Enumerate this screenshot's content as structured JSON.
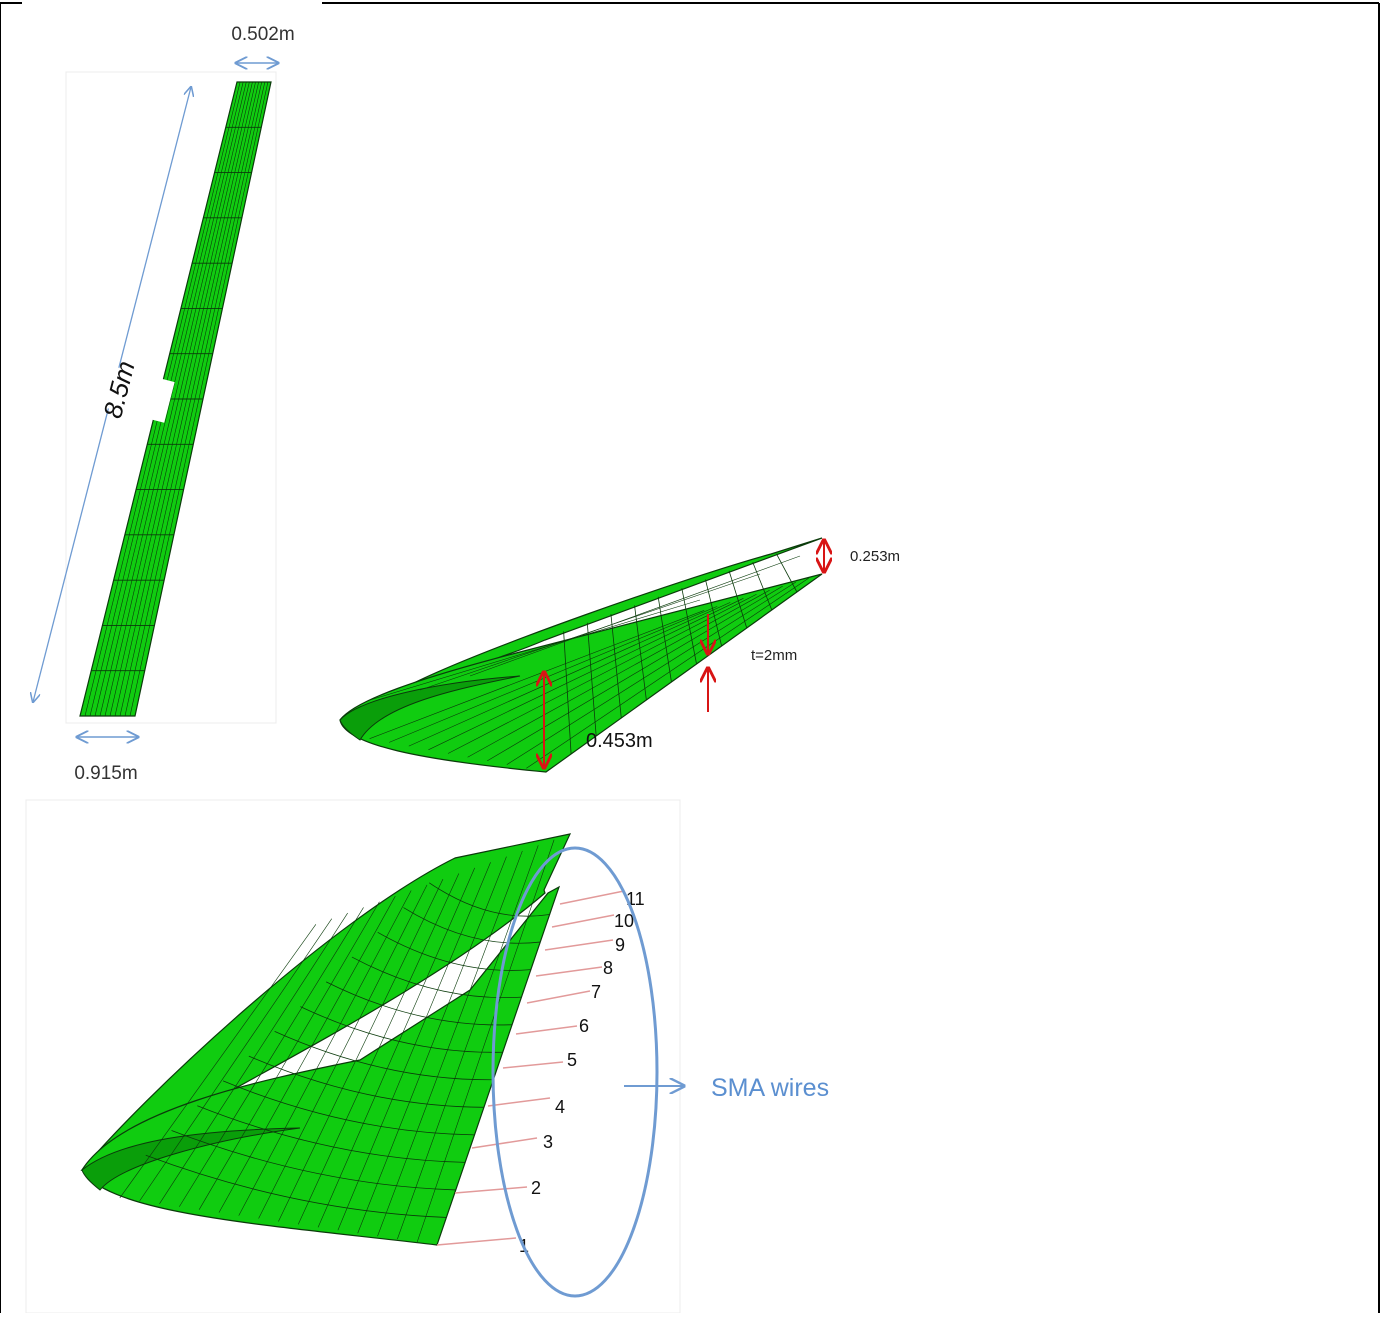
{
  "figure": {
    "top_view": {
      "tip_chord": "0.502m",
      "span": "8.5m",
      "root_chord": "0.915m"
    },
    "section_view": {
      "tip_thickness": "0.253m",
      "skin_thickness": "t=2mm",
      "root_thickness": "0.453m"
    },
    "wire_view": {
      "wire_numbers": [
        "1",
        "2",
        "3",
        "4",
        "5",
        "6",
        "7",
        "8",
        "9",
        "10",
        "11"
      ],
      "callout": "SMA wires"
    }
  },
  "colors": {
    "mesh_fill": "#10cc10",
    "mesh_dark": "#0a9e0a",
    "mesh_line": "#0b3b0b",
    "dimension_blue": "#6f9bd2",
    "dimension_red": "#d81515",
    "leader_red": "#e29a9a",
    "text": "#333333"
  }
}
